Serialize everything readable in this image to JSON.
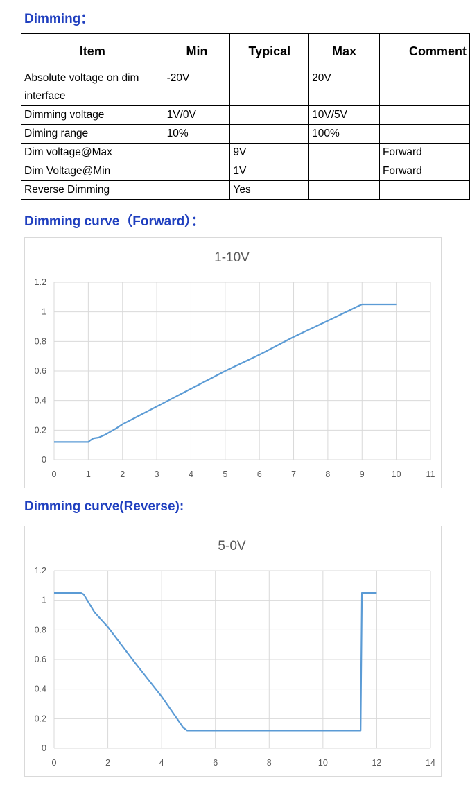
{
  "section_titles": {
    "dimming": "Dimming：",
    "forward": "Dimming curve（Forward）：",
    "reverse": "Dimming curve(Reverse):"
  },
  "spec_table": {
    "headers": [
      "Item",
      "Min",
      "Typical",
      "Max",
      "Comment"
    ],
    "rows": [
      [
        "Absolute voltage on dim interface",
        "-20V",
        "",
        "20V",
        ""
      ],
      [
        "Dimming voltage",
        "1V/0V",
        "",
        "10V/5V",
        ""
      ],
      [
        "Diming range",
        "10%",
        "",
        "100%",
        ""
      ],
      [
        "Dim voltage@Max",
        "",
        "9V",
        "",
        "Forward"
      ],
      [
        "Dim Voltage@Min",
        "",
        "1V",
        "",
        "Forward"
      ],
      [
        "Reverse Dimming",
        "",
        "Yes",
        "",
        ""
      ]
    ]
  },
  "chart_data": [
    {
      "type": "line",
      "title": "1-10V",
      "xlim": [
        0,
        11
      ],
      "ylim": [
        0,
        1.2
      ],
      "x_ticks": [
        0,
        1,
        2,
        3,
        4,
        5,
        6,
        7,
        8,
        9,
        10,
        11
      ],
      "y_ticks": [
        0,
        0.2,
        0.4,
        0.6,
        0.8,
        1,
        1.2
      ],
      "grid": true,
      "series": [
        {
          "color": "#5b9bd5",
          "x": [
            0,
            1,
            1.05,
            1.15,
            1.3,
            1.5,
            1.8,
            2,
            2.5,
            3,
            4,
            5,
            6,
            7,
            8,
            8.9,
            9,
            10
          ],
          "y": [
            0.12,
            0.12,
            0.13,
            0.145,
            0.15,
            0.17,
            0.21,
            0.24,
            0.3,
            0.36,
            0.48,
            0.6,
            0.71,
            0.83,
            0.94,
            1.04,
            1.05,
            1.05
          ]
        }
      ]
    },
    {
      "type": "line",
      "title": "5-0V",
      "xlim": [
        0,
        14
      ],
      "ylim": [
        0,
        1.2
      ],
      "x_ticks": [
        0,
        2,
        4,
        6,
        8,
        10,
        12,
        14
      ],
      "y_ticks": [
        0,
        0.2,
        0.4,
        0.6,
        0.8,
        1,
        1.2
      ],
      "grid": true,
      "series": [
        {
          "color": "#5b9bd5",
          "x": [
            0,
            1,
            1.1,
            1.5,
            2,
            3,
            4,
            4.5,
            4.8,
            4.95,
            5,
            11.4,
            11.45,
            12
          ],
          "y": [
            1.05,
            1.05,
            1.04,
            0.92,
            0.82,
            0.58,
            0.35,
            0.22,
            0.14,
            0.12,
            0.12,
            0.12,
            1.05,
            1.05
          ]
        }
      ]
    }
  ]
}
